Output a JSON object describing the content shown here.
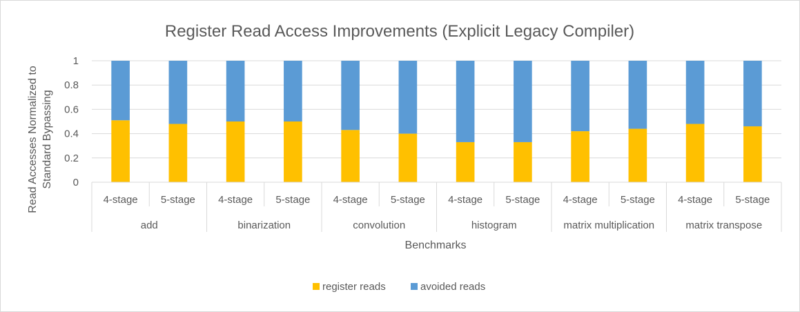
{
  "chart_data": {
    "type": "bar",
    "stacked": true,
    "title": "Register Read Access Improvements (Explicit Legacy Compiler)",
    "xlabel": "Benchmarks",
    "ylabel_lines": [
      "Read Accesses Normalized to",
      "Standard Bypassing"
    ],
    "ylim": [
      0,
      1
    ],
    "yticks": [
      "0",
      "0.2",
      "0.4",
      "0.6",
      "0.8",
      "1"
    ],
    "grid": true,
    "legend_position": "bottom",
    "groups": [
      {
        "name": "add",
        "categories": [
          "4-stage",
          "5-stage"
        ]
      },
      {
        "name": "binarization",
        "categories": [
          "4-stage",
          "5-stage"
        ]
      },
      {
        "name": "convolution",
        "categories": [
          "4-stage",
          "5-stage"
        ]
      },
      {
        "name": "histogram",
        "categories": [
          "4-stage",
          "5-stage"
        ]
      },
      {
        "name": "matrix multiplication",
        "categories": [
          "4-stage",
          "5-stage"
        ]
      },
      {
        "name": "matrix transpose",
        "categories": [
          "4-stage",
          "5-stage"
        ]
      }
    ],
    "series": [
      {
        "name": "register reads",
        "color": "#ffc000",
        "values": [
          0.51,
          0.48,
          0.5,
          0.5,
          0.43,
          0.4,
          0.33,
          0.33,
          0.42,
          0.44,
          0.48,
          0.46
        ]
      },
      {
        "name": "avoided reads",
        "color": "#5b9bd5",
        "values": [
          0.49,
          0.52,
          0.5,
          0.5,
          0.57,
          0.6,
          0.67,
          0.67,
          0.58,
          0.56,
          0.52,
          0.54
        ]
      }
    ]
  }
}
